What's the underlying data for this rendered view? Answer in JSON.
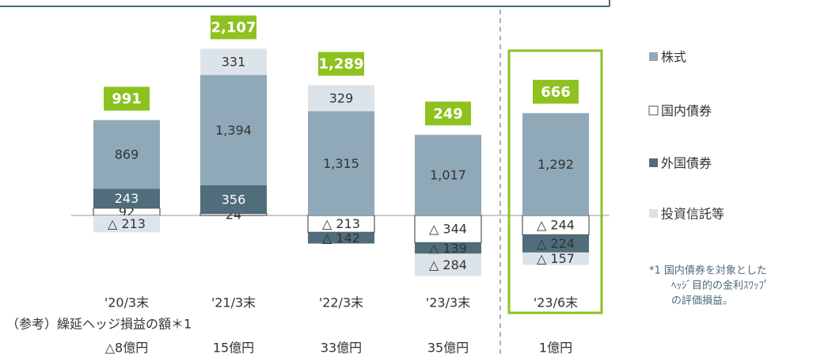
{
  "chart_data": {
    "type": "bar",
    "stacked": true,
    "categories": [
      "'20/3末",
      "'21/3末",
      "'22/3末",
      "'23/3末",
      "'23/6末"
    ],
    "series": [
      {
        "name": "株式",
        "color": "#8fa9b8",
        "values": [
          869,
          1394,
          1315,
          1017,
          1292
        ],
        "value_labels": [
          "869",
          "1,394",
          "1,315",
          "1,017",
          "1,292"
        ]
      },
      {
        "name": "国内債券",
        "color": "#ffffff",
        "values": [
          92,
          24,
          -213,
          -344,
          -244
        ],
        "value_labels": [
          "92",
          "24",
          "△ 213",
          "△ 344",
          "△ 244"
        ]
      },
      {
        "name": "外国債券",
        "color": "#4f6d7a",
        "values": [
          243,
          356,
          -142,
          -139,
          -224
        ],
        "value_labels": [
          "243",
          "356",
          "△ 142",
          "△ 139",
          "△ 224"
        ]
      },
      {
        "name": "投資信託等",
        "color": "#dce4ea",
        "values": [
          -213,
          331,
          329,
          -284,
          -157
        ],
        "value_labels": [
          "△ 213",
          "331",
          "329",
          "△ 284",
          "△ 157"
        ]
      }
    ],
    "totals": [
      991,
      2107,
      1289,
      249,
      666
    ],
    "total_labels": [
      "991",
      "2,107",
      "1,289",
      "249",
      "666"
    ],
    "total_color": "#8dc21f",
    "ylim": [
      -800,
      2200
    ],
    "reference": {
      "title": "（参考）繰延ヘッジ損益の額＊1",
      "values": [
        "△8億円",
        "15億円",
        "33億円",
        "35億円",
        "1億円"
      ]
    },
    "footnote": [
      "*1 国内債券を対象とした",
      "ﾍｯｼﾞ目的の金利ｽﾜｯﾌﾟ",
      "の評価損益。"
    ]
  }
}
